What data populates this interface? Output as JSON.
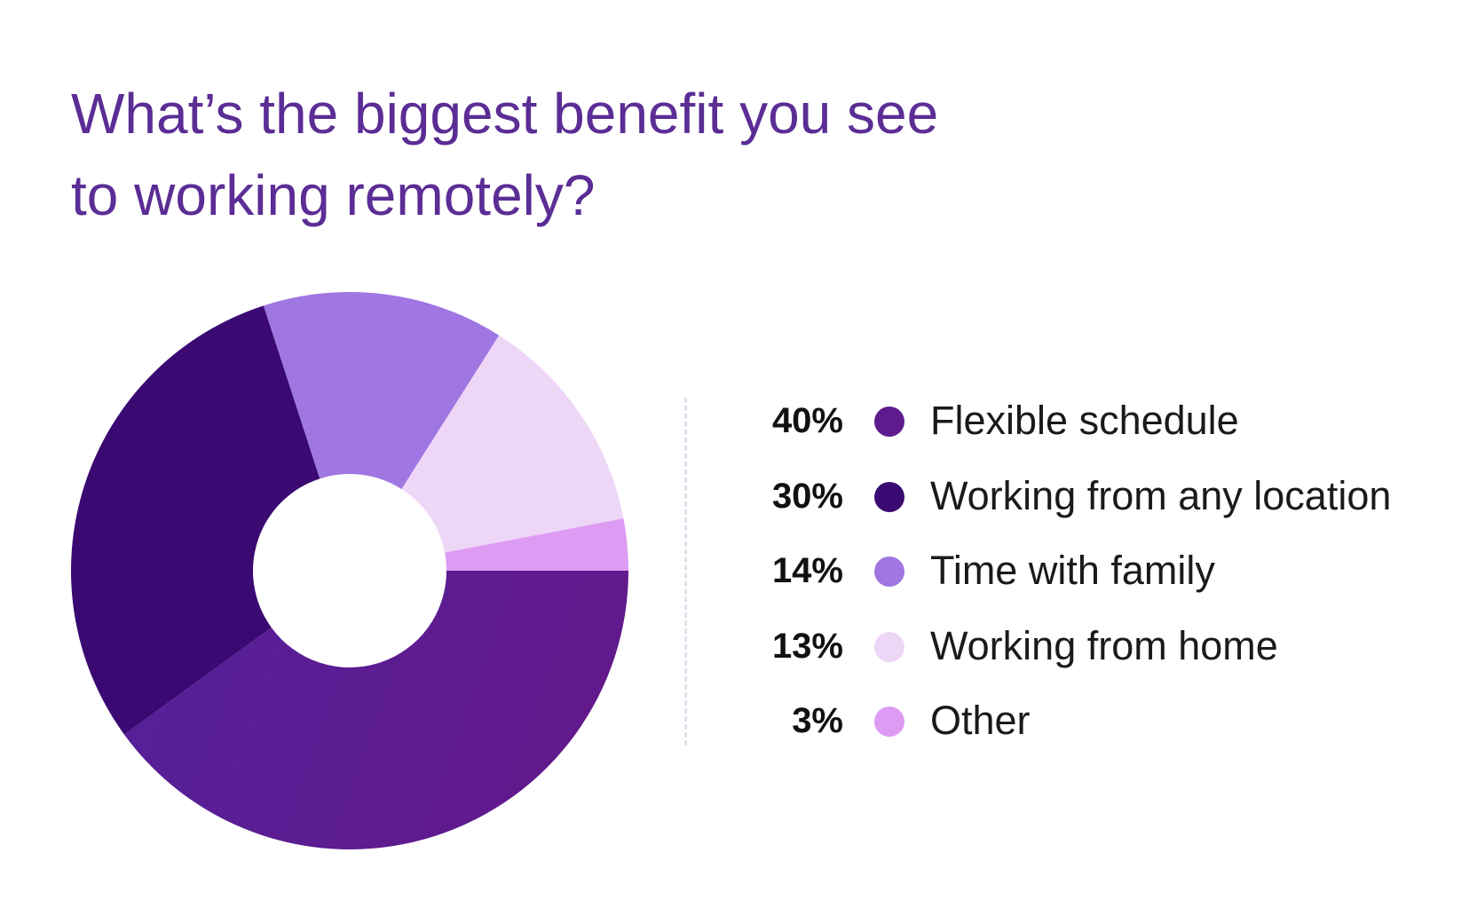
{
  "title_lines": [
    "What’s the biggest benefit you see",
    "to working remotely?"
  ],
  "chart_data": {
    "type": "pie",
    "title": "What’s the biggest benefit you see to working remotely?",
    "donut": true,
    "legend_position": "right",
    "categories": [
      "Flexible schedule",
      "Working from any location",
      "Time with family",
      "Working from home",
      "Other"
    ],
    "values": [
      40,
      30,
      14,
      13,
      3
    ],
    "value_labels": [
      "40%",
      "30%",
      "14%",
      "13%",
      "3%"
    ],
    "colors": [
      "#5E1B8E",
      "#3A0A72",
      "#A076E2",
      "#EED6F7",
      "#DE9BF4"
    ]
  }
}
